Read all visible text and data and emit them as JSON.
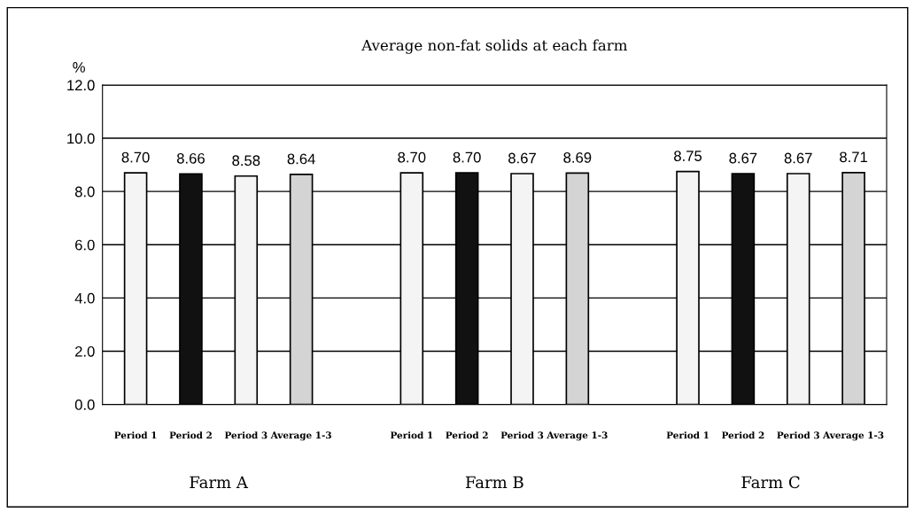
{
  "chart_data": {
    "type": "bar",
    "title": "Average non-fat solids at each farm",
    "ylabel": "%",
    "categories": [
      "Period 1",
      "Period 2",
      "Period 3",
      "Average 1-3",
      null,
      "Period 1",
      "Period 2",
      "Period 3",
      "Average 1-3",
      null,
      "Period 1",
      "Period 2",
      "Period 3",
      "Average 1-3"
    ],
    "values": [
      8.7,
      8.66,
      8.58,
      8.64,
      null,
      8.7,
      8.7,
      8.67,
      8.69,
      null,
      8.75,
      8.67,
      8.67,
      8.71
    ],
    "value_labels": [
      "8.70",
      "8.66",
      "8.58",
      "8.64",
      null,
      "8.70",
      "8.70",
      "8.67",
      "8.69",
      null,
      "8.75",
      "8.67",
      "8.67",
      "8.71"
    ],
    "colors": [
      "#f4f4f4",
      "#111111",
      "#f4f4f4",
      "#d4d4d4",
      "#ffffff",
      "#f4f4f4",
      "#111111",
      "#f4f4f4",
      "#d4d4d4",
      "#ffffff",
      "#f4f4f4",
      "#111111",
      "#f4f4f4",
      "#d4d4d4"
    ],
    "annotations": [
      "Farm A",
      "Farm B",
      "Farm C"
    ],
    "ylim": [
      0,
      12
    ],
    "yticks": [
      {
        "value": 0,
        "label": "0.0"
      },
      {
        "value": 2,
        "label": "2.0"
      },
      {
        "value": 4,
        "label": "4.0"
      },
      {
        "value": 6,
        "label": "6.0"
      },
      {
        "value": 8,
        "label": "8.0"
      },
      {
        "value": 10,
        "label": "10.0"
      },
      {
        "value": 12,
        "label": "12.0"
      }
    ],
    "grid": "y",
    "legend": false
  }
}
